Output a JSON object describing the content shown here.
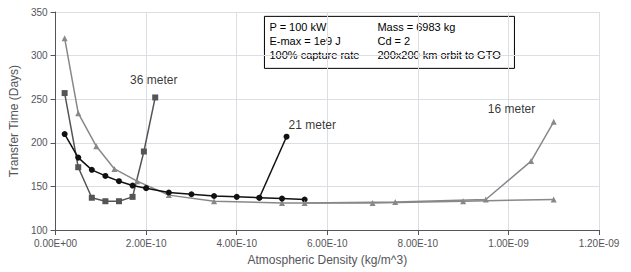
{
  "chart_data": {
    "type": "line",
    "xlabel": "Atmospheric Density (kg/m^3)",
    "ylabel": "Transfer Time (Days)",
    "xlim": [
      0,
      1.2e-09
    ],
    "xticks": [
      {
        "value": 0,
        "label": "0.00E+00"
      },
      {
        "value": 2e-10,
        "label": "2.00E-10"
      },
      {
        "value": 4e-10,
        "label": "4.00E-10"
      },
      {
        "value": 6e-10,
        "label": "6.00E-10"
      },
      {
        "value": 8e-10,
        "label": "8.00E-10"
      },
      {
        "value": 1e-09,
        "label": "1.00E-09"
      },
      {
        "value": 1.2e-09,
        "label": "1.20E-09"
      }
    ],
    "ylim": [
      100,
      350
    ],
    "yticks": [
      100,
      150,
      200,
      250,
      300,
      350
    ],
    "grid": true,
    "series": [
      {
        "color": "#555555",
        "marker": "square",
        "x": [
          2e-11,
          5e-11,
          8e-11,
          1.1e-10,
          1.4e-10,
          1.7e-10,
          1.95e-10,
          2.2e-10
        ],
        "values": [
          257,
          172,
          137,
          133,
          133,
          138,
          190,
          252
        ]
      },
      {
        "color": "#888888",
        "marker": "triangle",
        "x": [
          2e-11,
          5e-11,
          9e-11,
          1.3e-10,
          1.8e-10,
          2.5e-10,
          3.5e-10,
          5e-10,
          7e-10,
          9e-10,
          1.1e-09
        ],
        "values": [
          320,
          234,
          196,
          170,
          156,
          140,
          133,
          131,
          131,
          133,
          135
        ]
      },
      {
        "color": "#111111",
        "marker": "circle",
        "x": [
          2e-11,
          5e-11,
          8e-11,
          1.1e-10,
          1.4e-10,
          1.7e-10,
          2e-10,
          2.5e-10,
          3e-10,
          3.5e-10,
          4e-10,
          4.5e-10,
          5e-10,
          5.5e-10
        ],
        "values": [
          210,
          183,
          169,
          162,
          156,
          151,
          148,
          143,
          141,
          139,
          138,
          137,
          136,
          135
        ]
      },
      {
        "color": "#111111",
        "marker": "circle",
        "x": [
          4.5e-10,
          5.1e-10
        ],
        "values": [
          137,
          207
        ]
      },
      {
        "color": "#888888",
        "marker": "triangle",
        "x": [
          5.5e-10,
          7.5e-10,
          9.5e-10,
          1.05e-09,
          1.1e-09
        ],
        "values": [
          131,
          132,
          135,
          179,
          224
        ]
      }
    ],
    "annotations": [
      {
        "text": "36 meter",
        "x": 1.6e-10,
        "y": 265
      },
      {
        "text": "21 meter",
        "x": 5.1e-10,
        "y": 213
      },
      {
        "text": "16 meter",
        "x": 9.5e-10,
        "y": 232
      }
    ],
    "textbox": [
      [
        "P = 100 kW",
        "Mass = 6983 kg"
      ],
      [
        "E-max = 1e9 J",
        "Cd = 2"
      ],
      [
        "100% capture rate",
        "200x200 km orbit to GTO"
      ]
    ]
  }
}
